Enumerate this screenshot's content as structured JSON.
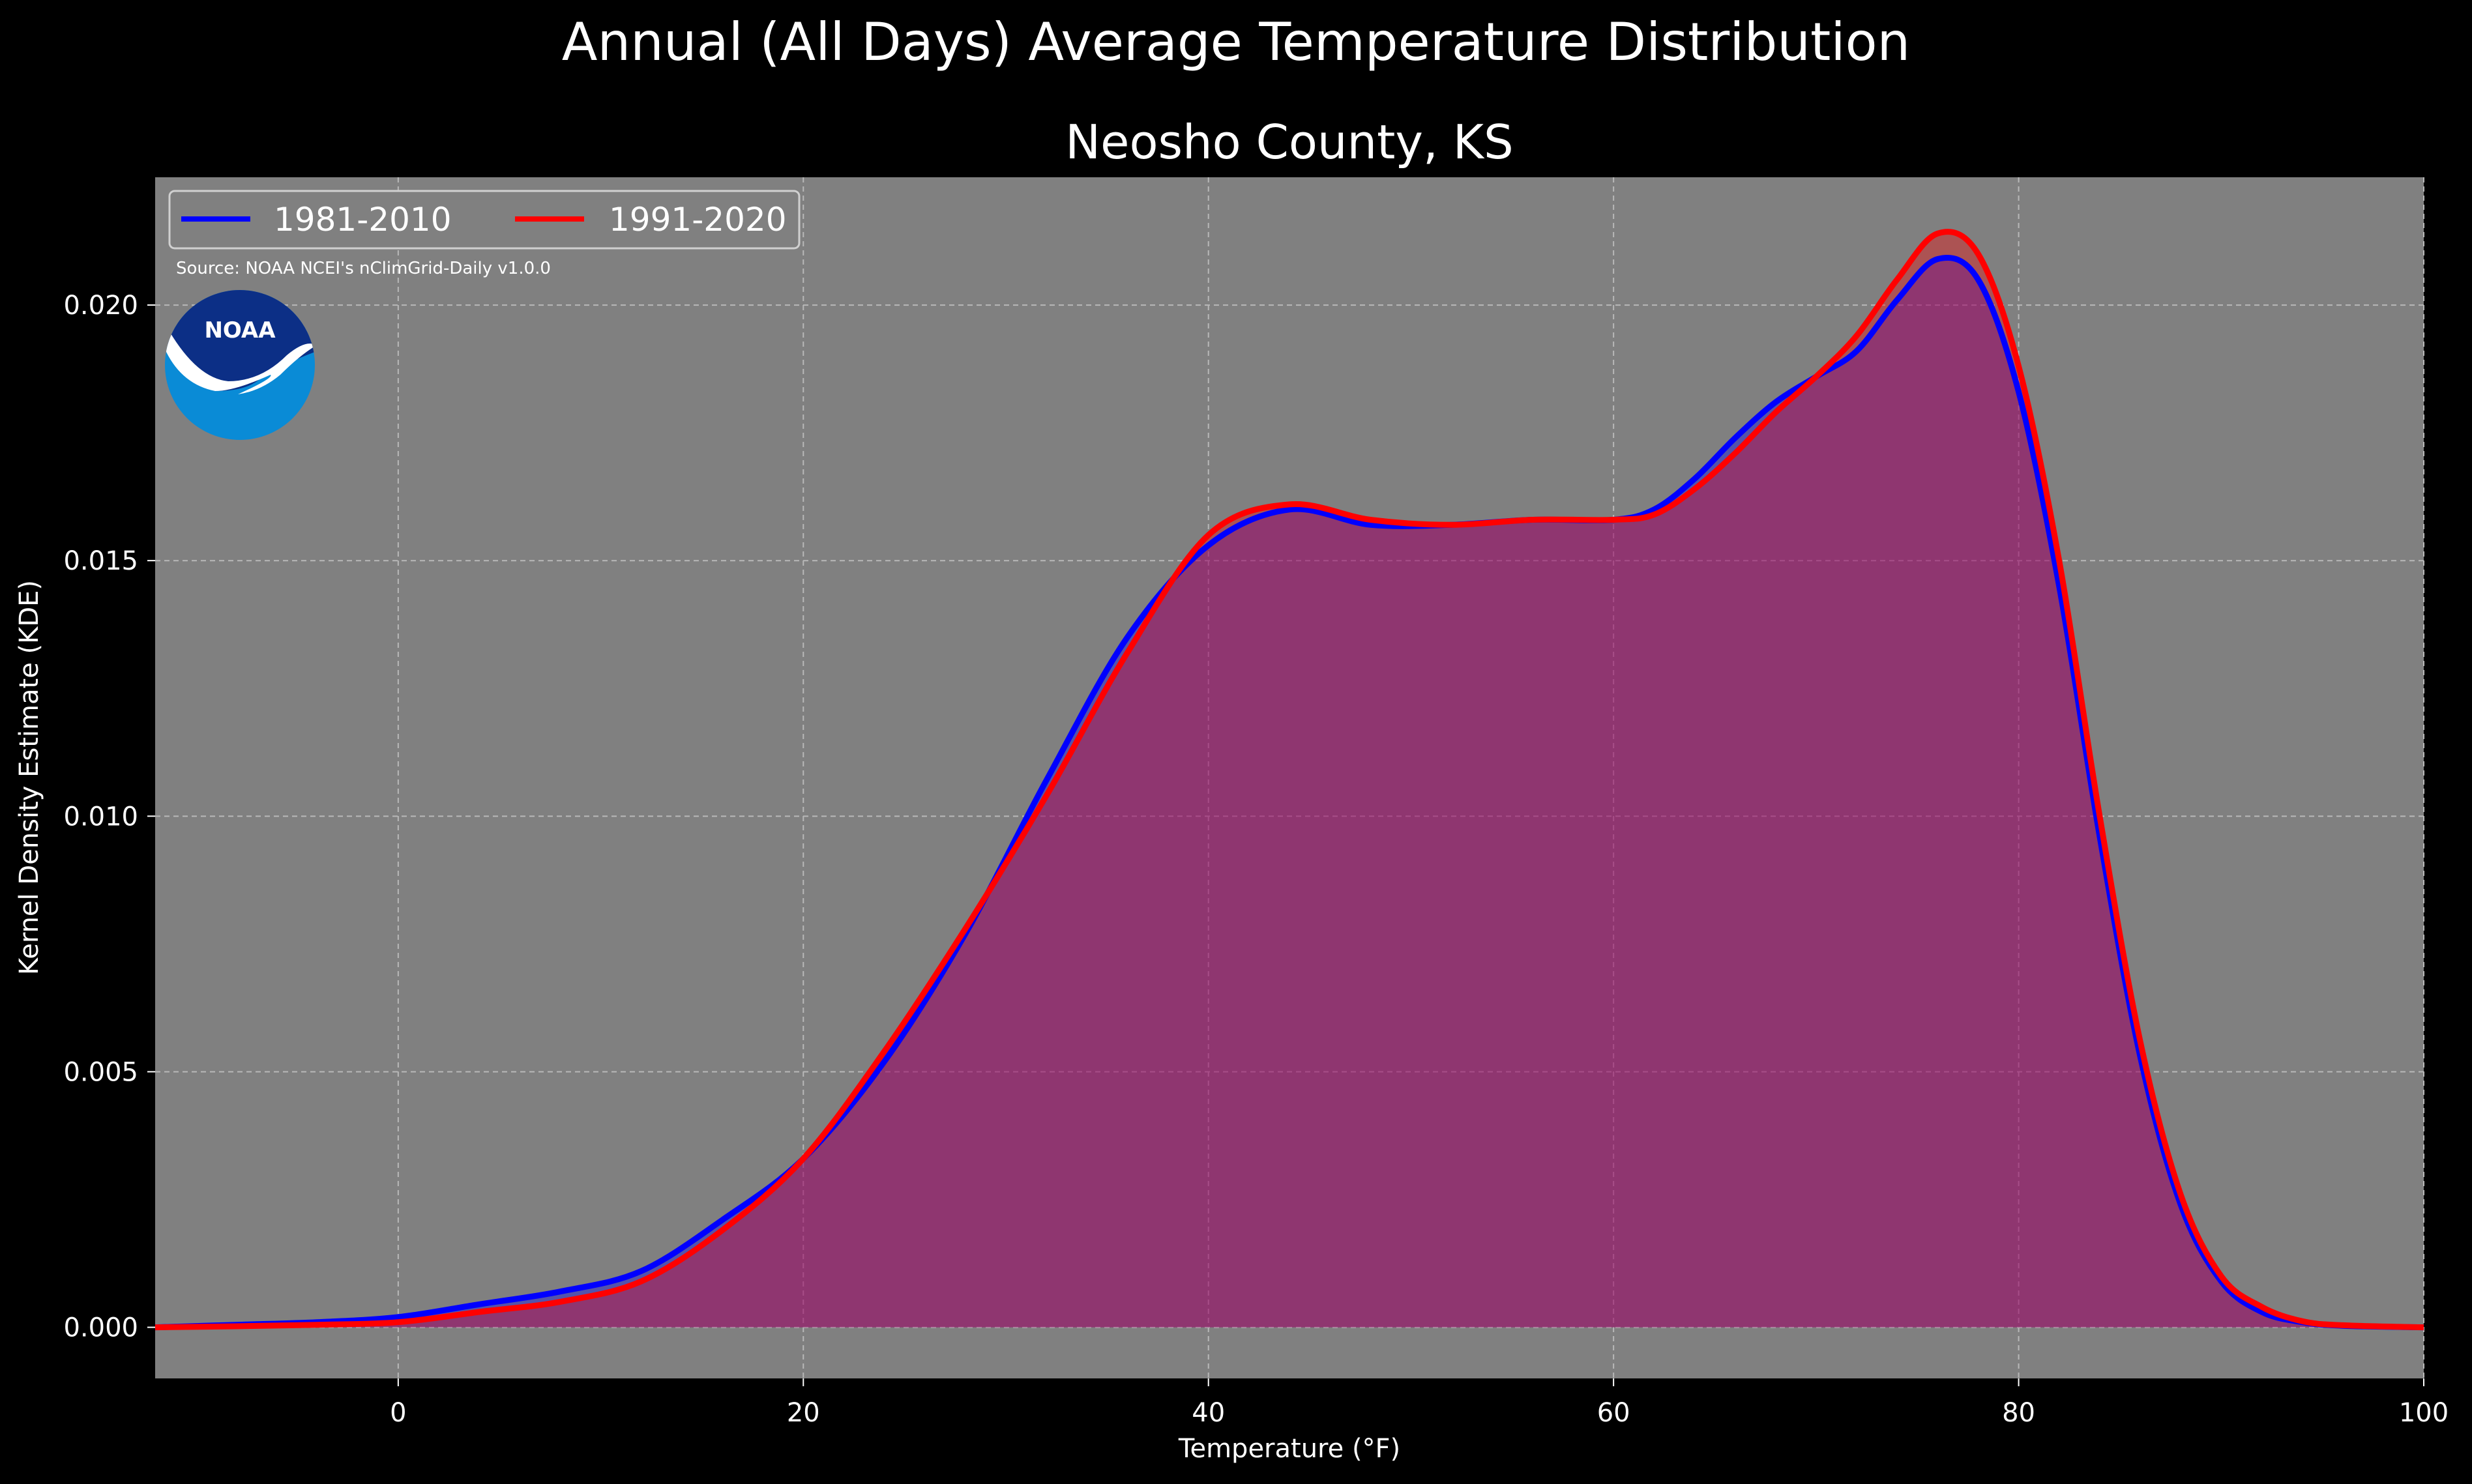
{
  "chart_data": {
    "type": "area",
    "title": "Annual (All Days) Average Temperature Distribution",
    "subtitle": "Neosho County, KS",
    "xlabel": "Temperature (°F)",
    "ylabel": "Kernel Density Estimate (KDE)",
    "xlim": [
      -12,
      100
    ],
    "ylim": [
      -0.001,
      0.0225
    ],
    "xticks": [
      0,
      20,
      40,
      60,
      80,
      100
    ],
    "xtick_labels": [
      "0",
      "20",
      "40",
      "60",
      "80",
      "100"
    ],
    "yticks": [
      0.0,
      0.005,
      0.01,
      0.015,
      0.02
    ],
    "ytick_labels": [
      "0.000",
      "0.005",
      "0.010",
      "0.015",
      "0.020"
    ],
    "grid": true,
    "legend_position": "top-left",
    "source": "Source: NOAA NCEI's nClimGrid-Daily v1.0.0",
    "logo_text": "NOAA",
    "colors": {
      "background": "#000000",
      "plot_bg": "#808080",
      "grid": "#b8b8b8"
    },
    "series": [
      {
        "name": "1981-2010",
        "color": "#0000ff",
        "fill": "#0000ff",
        "x": [
          -12,
          -8,
          -4,
          0,
          4,
          8,
          12,
          16,
          20,
          24,
          28,
          32,
          36,
          40,
          44,
          48,
          52,
          56,
          60,
          62,
          64,
          66,
          68,
          70,
          72,
          74,
          76,
          78,
          80,
          82,
          84,
          86,
          88,
          90,
          92,
          94,
          96,
          100
        ],
        "y": [
          0.0,
          5e-05,
          0.0001,
          0.0002,
          0.00045,
          0.0007,
          0.0011,
          0.0021,
          0.0033,
          0.0052,
          0.0077,
          0.0107,
          0.0135,
          0.0153,
          0.016,
          0.0157,
          0.0157,
          0.0158,
          0.0158,
          0.016,
          0.0166,
          0.0174,
          0.0181,
          0.0186,
          0.0191,
          0.0201,
          0.0209,
          0.0205,
          0.0183,
          0.0145,
          0.0096,
          0.0053,
          0.0024,
          0.0009,
          0.0003,
          0.0001,
          3e-05,
          0.0
        ]
      },
      {
        "name": "1991-2020",
        "color": "#ff0000",
        "fill": "#ff0000",
        "x": [
          -12,
          -8,
          -4,
          0,
          4,
          8,
          12,
          16,
          20,
          24,
          28,
          32,
          36,
          40,
          44,
          48,
          52,
          56,
          60,
          62,
          64,
          66,
          68,
          70,
          72,
          74,
          76,
          78,
          80,
          82,
          84,
          86,
          88,
          90,
          92,
          94,
          96,
          100
        ],
        "y": [
          0.0,
          2e-05,
          5e-05,
          0.0001,
          0.0003,
          0.0005,
          0.0009,
          0.0019,
          0.0033,
          0.0054,
          0.0078,
          0.0104,
          0.0132,
          0.0155,
          0.0161,
          0.0158,
          0.0157,
          0.0158,
          0.0158,
          0.0159,
          0.0164,
          0.0171,
          0.0179,
          0.0186,
          0.0194,
          0.0205,
          0.0214,
          0.021,
          0.0188,
          0.015,
          0.01,
          0.0056,
          0.0026,
          0.001,
          0.0004,
          0.00012,
          4e-05,
          0.0
        ]
      }
    ]
  }
}
